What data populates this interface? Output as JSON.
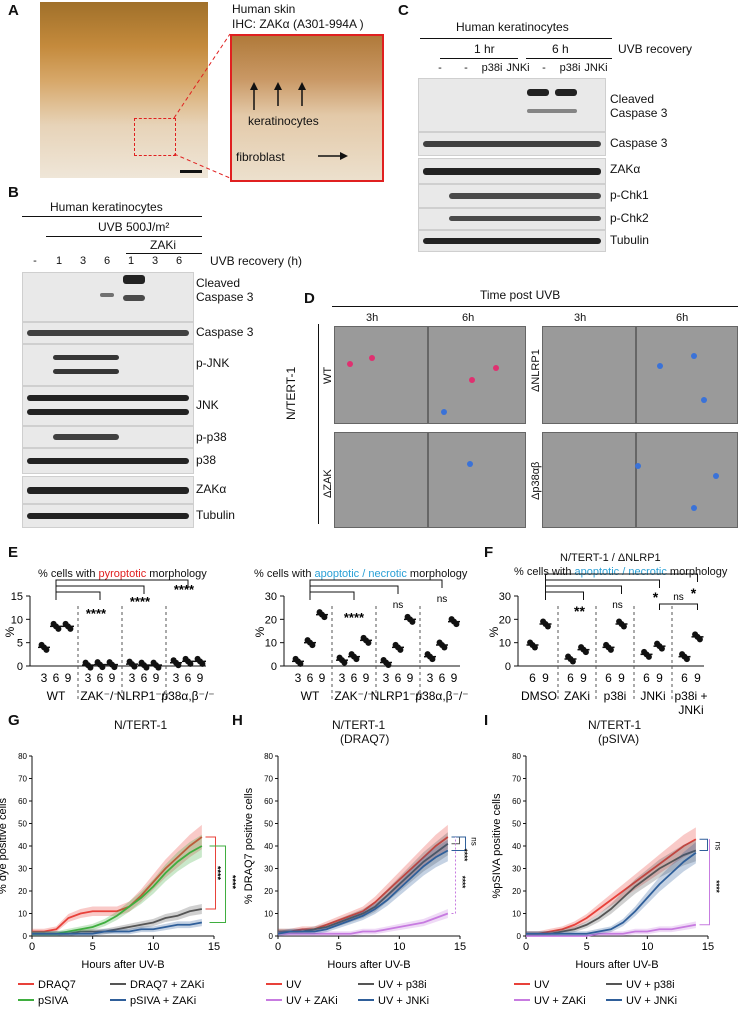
{
  "panels": {
    "A": "A",
    "B": "B",
    "C": "C",
    "D": "D",
    "E": "E",
    "F": "F",
    "G": "G",
    "H": "H",
    "I": "I"
  },
  "panelA": {
    "title_line1": "Human skin",
    "title_line2": "IHC: ZAKα (A301-994A )",
    "label_keratinocytes": "keratinocytes",
    "label_fibroblast": "fibroblast"
  },
  "panelB": {
    "cell": "Human keratinocytes",
    "treatment": "UVB 500J/m²",
    "inhibitor": "ZAKi",
    "lanes": [
      "-",
      "1",
      "3",
      "6",
      "1",
      "3",
      "6"
    ],
    "lane_axis": "UVB recovery (h)",
    "blots": [
      "Cleaved Caspase 3",
      "Caspase 3",
      "p-JNK",
      "JNK",
      "p-p38",
      "p38",
      "ZAKα",
      "Tubulin"
    ]
  },
  "panelC": {
    "cell": "Human keratinocytes",
    "time1": "1 hr",
    "time2": "6 h",
    "lane_axis": "UVB recovery",
    "lanes": [
      "-",
      "-",
      "p38i",
      "JNKi",
      "-",
      "p38i",
      "JNKi"
    ],
    "blots": [
      "Cleaved Caspase 3",
      "Caspase 3",
      "ZAKα",
      "p-Chk1",
      "p-Chk2",
      "Tubulin"
    ]
  },
  "panelD": {
    "title": "Time post UVB",
    "cell_line": "N/TERT-1",
    "rows": [
      "WT",
      "ΔZAK"
    ],
    "rows_right": [
      "ΔNLRP1",
      "Δp38αβ"
    ],
    "times": [
      "3h",
      "6h",
      "3h",
      "6h"
    ]
  },
  "panelE": {
    "left_title_pre": "% cells with ",
    "left_title_key": "pyroptotic",
    "left_title_post": " morphology",
    "right_title_pre": "% cells with ",
    "right_title_key": "apoptotic / necrotic",
    "right_title_post": " morphology",
    "ylabel": "%",
    "groups": [
      "WT",
      "ZAK⁻/⁻",
      "NLRP1⁻/⁻",
      "p38α,β⁻/⁻"
    ],
    "ticks": [
      "3",
      "6",
      "9"
    ],
    "left_sig": [
      "****",
      "****",
      "****"
    ],
    "right_sig": [
      "****",
      "ns",
      "ns"
    ],
    "left_yticks": [
      "0",
      "5",
      "10",
      "15"
    ],
    "right_yticks": [
      "0",
      "10",
      "20",
      "30"
    ]
  },
  "panelF": {
    "title1": "N/TERT-1 / ΔNLRP1",
    "title_pre": "% cells with ",
    "title_key": "apoptotic / necrotic",
    "title_post": " morphology",
    "ylabel": "%",
    "groups": [
      "DMSO",
      "ZAKi",
      "p38i",
      "JNKi",
      "p38i +",
      "JNKi"
    ],
    "ticks": [
      "6",
      "9"
    ],
    "sig": [
      "**",
      "ns",
      "*",
      "ns",
      "*"
    ],
    "yticks": [
      "0",
      "10",
      "20",
      "30"
    ]
  },
  "panelG": {
    "title": "N/TERT-1",
    "ylabel": "% dye positive cells",
    "xlabel": "Hours after UV-B",
    "sig": [
      "****",
      "****"
    ],
    "legend": [
      "DRAQ7",
      "DRAQ7 + ZAKi",
      "pSIVA",
      "pSIVA + ZAKi"
    ]
  },
  "panelH": {
    "title1": "N/TERT-1",
    "title2": "(DRAQ7)",
    "ylabel": "% DRAQ7 positive cells",
    "xlabel": "Hours after UV-B",
    "sig": [
      "ns",
      "****",
      "****"
    ],
    "legend": [
      "UV",
      "UV + p38i",
      "UV + ZAKi",
      "UV + JNKi"
    ]
  },
  "panelI": {
    "title1": "N/TERT-1",
    "title2": "(pSIVA)",
    "ylabel": "%pSIVA positive cells",
    "xlabel": "Hours after UV-B",
    "sig": [
      "ns",
      "****"
    ],
    "legend": [
      "UV",
      "UV + p38i",
      "UV + ZAKi",
      "UV + JNKi"
    ]
  },
  "axes": {
    "xticks": [
      "0",
      "5",
      "10",
      "15"
    ],
    "yticks": [
      "0",
      "10",
      "20",
      "30",
      "40",
      "50",
      "60",
      "70",
      "80"
    ]
  },
  "colors": {
    "red": "#e8413a",
    "green": "#3fae3f",
    "gray": "#555555",
    "blue": "#2f5f9a",
    "violet": "#c77be0",
    "pink": "#e06aa0"
  },
  "chart_data": [
    {
      "type": "line",
      "title": "N/TERT-1",
      "xlabel": "Hours after UV-B",
      "ylabel": "% dye positive cells",
      "xlim": [
        0,
        15
      ],
      "ylim": [
        0,
        80
      ],
      "series": [
        {
          "name": "DRAQ7",
          "x": [
            0,
            1,
            2,
            3,
            4,
            5,
            6,
            7,
            8,
            9,
            10,
            11,
            12,
            13,
            14
          ],
          "values": [
            2,
            2,
            3,
            8,
            10,
            11,
            11,
            11,
            13,
            18,
            24,
            30,
            35,
            40,
            44
          ]
        },
        {
          "name": "DRAQ7 + ZAKi",
          "x": [
            0,
            1,
            2,
            3,
            4,
            5,
            6,
            7,
            8,
            9,
            10,
            11,
            12,
            13,
            14
          ],
          "values": [
            1,
            1,
            1,
            1,
            2,
            2,
            2,
            3,
            4,
            5,
            6,
            8,
            9,
            11,
            12
          ]
        },
        {
          "name": "pSIVA",
          "x": [
            0,
            1,
            2,
            3,
            4,
            5,
            6,
            7,
            8,
            9,
            10,
            11,
            12,
            13,
            14
          ],
          "values": [
            1,
            1,
            1,
            2,
            3,
            4,
            6,
            9,
            13,
            17,
            22,
            28,
            33,
            37,
            40
          ]
        },
        {
          "name": "pSIVA + ZAKi",
          "x": [
            0,
            1,
            2,
            3,
            4,
            5,
            6,
            7,
            8,
            9,
            10,
            11,
            12,
            13,
            14
          ],
          "values": [
            1,
            1,
            1,
            1,
            1,
            1,
            2,
            2,
            2,
            3,
            3,
            4,
            5,
            5,
            6
          ]
        }
      ]
    },
    {
      "type": "line",
      "title": "N/TERT-1 (DRAQ7)",
      "xlabel": "Hours after UV-B",
      "ylabel": "% DRAQ7 positive cells",
      "xlim": [
        0,
        15
      ],
      "ylim": [
        0,
        80
      ],
      "series": [
        {
          "name": "UV",
          "x": [
            0,
            1,
            2,
            3,
            4,
            5,
            6,
            7,
            8,
            9,
            10,
            11,
            12,
            13,
            14
          ],
          "values": [
            2,
            2,
            3,
            3,
            5,
            7,
            9,
            11,
            15,
            20,
            25,
            30,
            35,
            40,
            44
          ]
        },
        {
          "name": "UV + p38i",
          "x": [
            0,
            1,
            2,
            3,
            4,
            5,
            6,
            7,
            8,
            9,
            10,
            11,
            12,
            13,
            14
          ],
          "values": [
            2,
            2,
            2,
            3,
            4,
            6,
            8,
            10,
            13,
            18,
            23,
            28,
            33,
            37,
            41
          ]
        },
        {
          "name": "UV + ZAKi",
          "x": [
            0,
            1,
            2,
            3,
            4,
            5,
            6,
            7,
            8,
            9,
            10,
            11,
            12,
            13,
            14
          ],
          "values": [
            1,
            1,
            1,
            1,
            1,
            1,
            1,
            2,
            2,
            3,
            4,
            5,
            6,
            8,
            10
          ]
        },
        {
          "name": "UV + JNKi",
          "x": [
            0,
            1,
            2,
            3,
            4,
            5,
            6,
            7,
            8,
            9,
            10,
            11,
            12,
            13,
            14
          ],
          "values": [
            1,
            2,
            2,
            2,
            3,
            5,
            7,
            9,
            12,
            16,
            21,
            26,
            31,
            35,
            38
          ]
        }
      ]
    },
    {
      "type": "line",
      "title": "N/TERT-1 (pSIVA)",
      "xlabel": "Hours after UV-B",
      "ylabel": "%pSIVA positive cells",
      "xlim": [
        0,
        15
      ],
      "ylim": [
        0,
        80
      ],
      "series": [
        {
          "name": "UV",
          "x": [
            0,
            1,
            2,
            3,
            4,
            5,
            6,
            7,
            8,
            9,
            10,
            11,
            12,
            13,
            14
          ],
          "values": [
            1,
            1,
            2,
            3,
            5,
            8,
            12,
            16,
            20,
            24,
            28,
            32,
            36,
            40,
            43
          ]
        },
        {
          "name": "UV + p38i",
          "x": [
            0,
            1,
            2,
            3,
            4,
            5,
            6,
            7,
            8,
            9,
            10,
            11,
            12,
            13,
            14
          ],
          "values": [
            1,
            1,
            1,
            2,
            3,
            5,
            8,
            12,
            17,
            22,
            26,
            30,
            33,
            36,
            38
          ]
        },
        {
          "name": "UV + ZAKi",
          "x": [
            0,
            1,
            2,
            3,
            4,
            5,
            6,
            7,
            8,
            9,
            10,
            11,
            12,
            13,
            14
          ],
          "values": [
            0,
            0,
            0,
            0,
            0,
            0,
            1,
            1,
            1,
            2,
            2,
            3,
            3,
            4,
            5
          ]
        },
        {
          "name": "UV + JNKi",
          "x": [
            0,
            1,
            2,
            3,
            4,
            5,
            6,
            7,
            8,
            9,
            10,
            11,
            12,
            13,
            14
          ],
          "values": [
            1,
            1,
            1,
            1,
            1,
            1,
            2,
            3,
            6,
            11,
            17,
            23,
            28,
            33,
            37
          ]
        }
      ]
    },
    {
      "type": "scatter",
      "title": "% cells with pyroptotic morphology",
      "ylabel": "%",
      "ylim": [
        0,
        15
      ],
      "categories": [
        "WT 3",
        "WT 6",
        "WT 9",
        "ZAK 3",
        "ZAK 6",
        "ZAK 9",
        "NLRP1 3",
        "NLRP1 6",
        "NLRP1 9",
        "p38 3",
        "p38 6",
        "p38 9"
      ],
      "values": [
        4,
        8.5,
        8.5,
        0.2,
        0.3,
        0.3,
        0.4,
        0.2,
        0.2,
        0.7,
        1,
        1
      ]
    },
    {
      "type": "scatter",
      "title": "% cells with apoptotic / necrotic morphology",
      "ylabel": "%",
      "ylim": [
        0,
        30
      ],
      "categories": [
        "WT 3",
        "WT 6",
        "WT 9",
        "ZAK 3",
        "ZAK 6",
        "ZAK 9",
        "NLRP1 3",
        "NLRP1 6",
        "NLRP1 9",
        "p38 3",
        "p38 6",
        "p38 9"
      ],
      "values": [
        2,
        10,
        22,
        2.5,
        4,
        11,
        1.5,
        8,
        20,
        4,
        9,
        19
      ]
    },
    {
      "type": "scatter",
      "title": "N/TERT-1 / ΔNLRP1 % cells with apoptotic / necrotic morphology",
      "ylabel": "%",
      "ylim": [
        0,
        30
      ],
      "categories": [
        "DMSO 6",
        "DMSO 9",
        "ZAKi 6",
        "ZAKi 9",
        "p38i 6",
        "p38i 9",
        "JNKi 6",
        "JNKi 9",
        "p38i+JNKi 6",
        "p38i+JNKi 9"
      ],
      "values": [
        9,
        18,
        3,
        7,
        8,
        18,
        5,
        8.5,
        4,
        12.5
      ]
    }
  ]
}
